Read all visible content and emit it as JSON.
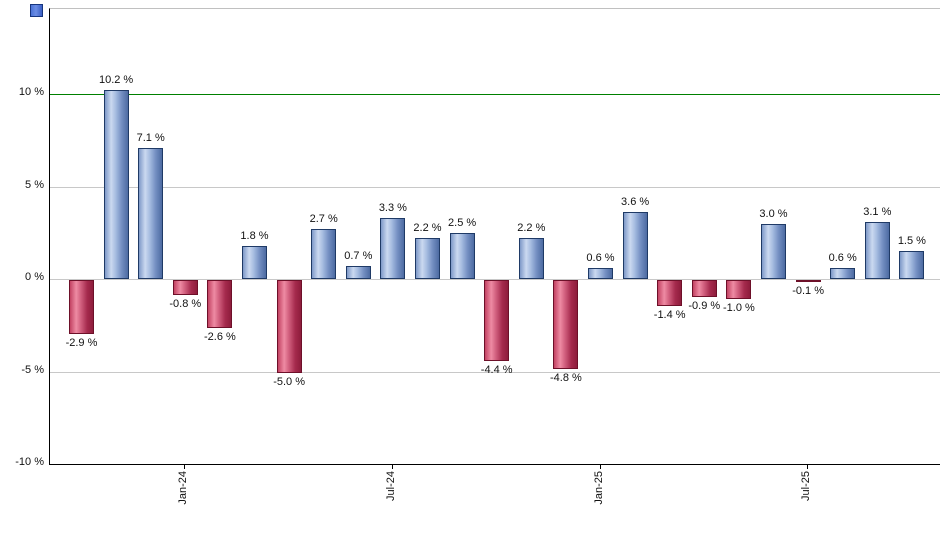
{
  "chart_data": {
    "type": "bar",
    "title": "",
    "xlabel": "",
    "ylabel": "",
    "ylim": [
      -10,
      14.6
    ],
    "grid": true,
    "legend_position": "none",
    "bars": [
      {
        "value": -2.9,
        "label": "-2.9 %"
      },
      {
        "value": 10.2,
        "label": "10.2 %"
      },
      {
        "value": 7.1,
        "label": "7.1 %"
      },
      {
        "value": -0.8,
        "label": "-0.8 %"
      },
      {
        "value": -2.6,
        "label": "-2.6 %"
      },
      {
        "value": 1.8,
        "label": "1.8 %"
      },
      {
        "value": -5.0,
        "label": "-5.0 %"
      },
      {
        "value": 2.7,
        "label": "2.7 %"
      },
      {
        "value": 0.7,
        "label": "0.7 %"
      },
      {
        "value": 3.3,
        "label": "3.3 %"
      },
      {
        "value": 2.2,
        "label": "2.2 %"
      },
      {
        "value": 2.5,
        "label": "2.5 %"
      },
      {
        "value": -4.4,
        "label": "-4.4 %"
      },
      {
        "value": 2.2,
        "label": "2.2 %"
      },
      {
        "value": -4.8,
        "label": "-4.8 %"
      },
      {
        "value": 0.6,
        "label": "0.6 %"
      },
      {
        "value": 3.6,
        "label": "3.6 %"
      },
      {
        "value": -1.4,
        "label": "-1.4 %"
      },
      {
        "value": -0.9,
        "label": "-0.9 %"
      },
      {
        "value": -1.0,
        "label": "-1.0 %"
      },
      {
        "value": 3.0,
        "label": "3.0 %"
      },
      {
        "value": -0.1,
        "label": "-0.1 %"
      },
      {
        "value": 0.6,
        "label": "0.6 %"
      },
      {
        "value": 3.1,
        "label": "3.1 %"
      },
      {
        "value": 1.5,
        "label": "1.5 %"
      }
    ],
    "y_tick_labels": [
      {
        "value": 10,
        "label": "10 %"
      },
      {
        "value": 5,
        "label": "5 %"
      },
      {
        "value": 0,
        "label": "0 %"
      },
      {
        "value": -5,
        "label": "-5 %"
      },
      {
        "value": -10,
        "label": "-10 %"
      }
    ],
    "x_tick_labels": [
      {
        "bar_index": 3,
        "label": "Jan-24"
      },
      {
        "bar_index": 9,
        "label": "Jul-24"
      },
      {
        "bar_index": 15,
        "label": "Jan-25"
      },
      {
        "bar_index": 21,
        "label": "Jul-25"
      }
    ],
    "reference_line": {
      "value": 10,
      "color": "#008000"
    },
    "colors": {
      "positive_bar": "#7b97c8",
      "positive_border": "#1f3a66",
      "negative_bar": "#c23a5e",
      "negative_border": "#6d1029",
      "gridline": "#c8c8c8",
      "reference_line": "#008000",
      "axis": "#000000",
      "legend_swatch": "#4a72d6"
    }
  }
}
